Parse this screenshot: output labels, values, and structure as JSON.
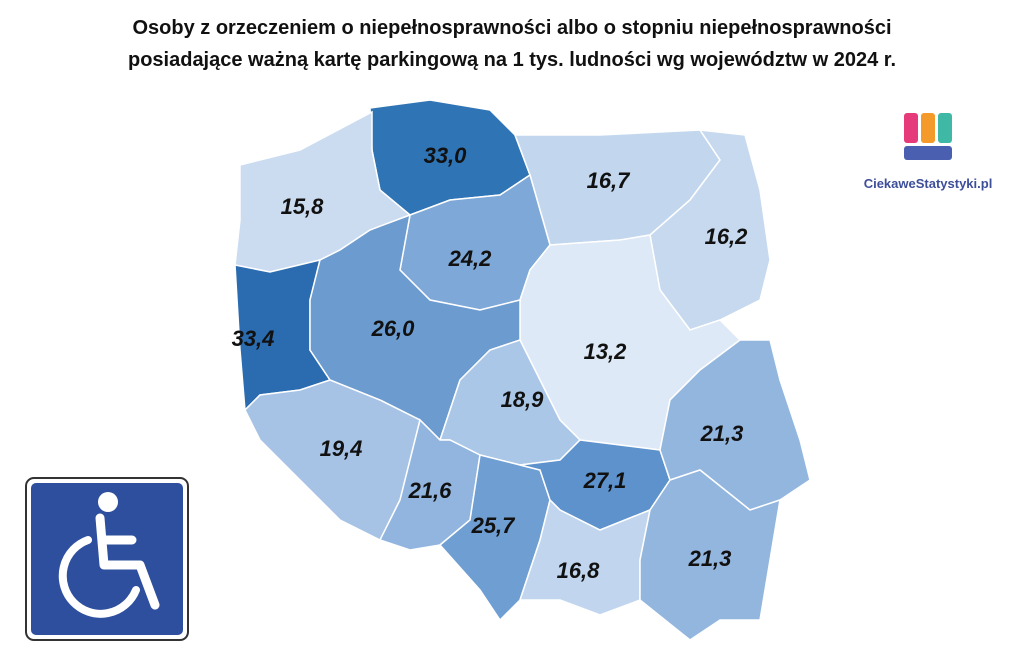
{
  "title": [
    "Osoby z orzeczeniem o niepełnosprawności albo o stopniu niepełnosprawności",
    "posiadające ważną kartę parkingową na 1 tys. ludności wg województw w 2024 r."
  ],
  "logo": "CiekaweStatystyki.pl",
  "regions": [
    {
      "value": 33.0,
      "label": "33,0",
      "color": "#2f74b5"
    },
    {
      "value": 15.8,
      "label": "15,8",
      "color": "#cbdcf0"
    },
    {
      "value": 16.7,
      "label": "16,7",
      "color": "#c2d6ee"
    },
    {
      "value": 16.2,
      "label": "16,2",
      "color": "#c6d9ef"
    },
    {
      "value": 24.2,
      "label": "24,2",
      "color": "#7ea8d7"
    },
    {
      "value": 13.2,
      "label": "13,2",
      "color": "#dde9f6"
    },
    {
      "value": 33.4,
      "label": "33,4",
      "color": "#2b6cb0"
    },
    {
      "value": 26.0,
      "label": "26,0",
      "color": "#6c9bd0"
    },
    {
      "value": 18.9,
      "label": "18,9",
      "color": "#abc7e8"
    },
    {
      "value": 19.4,
      "label": "19,4",
      "color": "#a6c3e6"
    },
    {
      "value": 21.6,
      "label": "21,6",
      "color": "#91b5df"
    },
    {
      "value": 25.7,
      "label": "25,7",
      "color": "#6f9ed2"
    },
    {
      "value": 27.1,
      "label": "27,1",
      "color": "#5d92cc"
    },
    {
      "value": 21.3,
      "label": "21,3",
      "color": "#93b6df"
    },
    {
      "value": 16.8,
      "label": "16,8",
      "color": "#c1d6ee"
    },
    {
      "value": 21.3,
      "label": "21,3",
      "color": "#93b6df"
    }
  ]
}
